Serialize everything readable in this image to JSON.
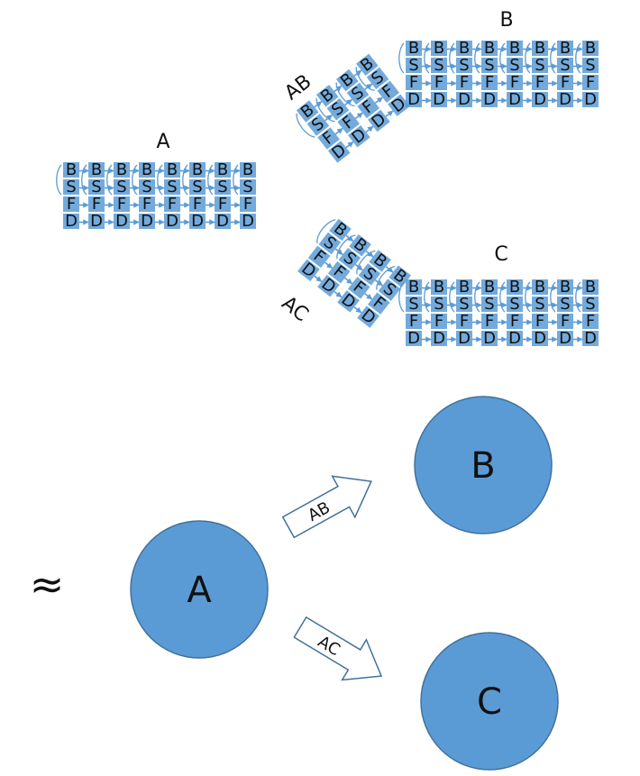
{
  "top": {
    "letters": [
      "B",
      "S",
      "F",
      "D"
    ],
    "labels": {
      "a": "A",
      "b": "B",
      "c": "C",
      "ab": "AB",
      "ac": "AC"
    }
  },
  "bottom": {
    "approx": "≈",
    "node_a": "A",
    "node_b": "B",
    "node_c": "C",
    "arrow_ab": "AB",
    "arrow_ac": "AC"
  },
  "colors": {
    "fill": "#5b9bd5",
    "stroke": "#41719c",
    "cell_fill": "#5b9bd5",
    "link": "#5b9bd5"
  }
}
